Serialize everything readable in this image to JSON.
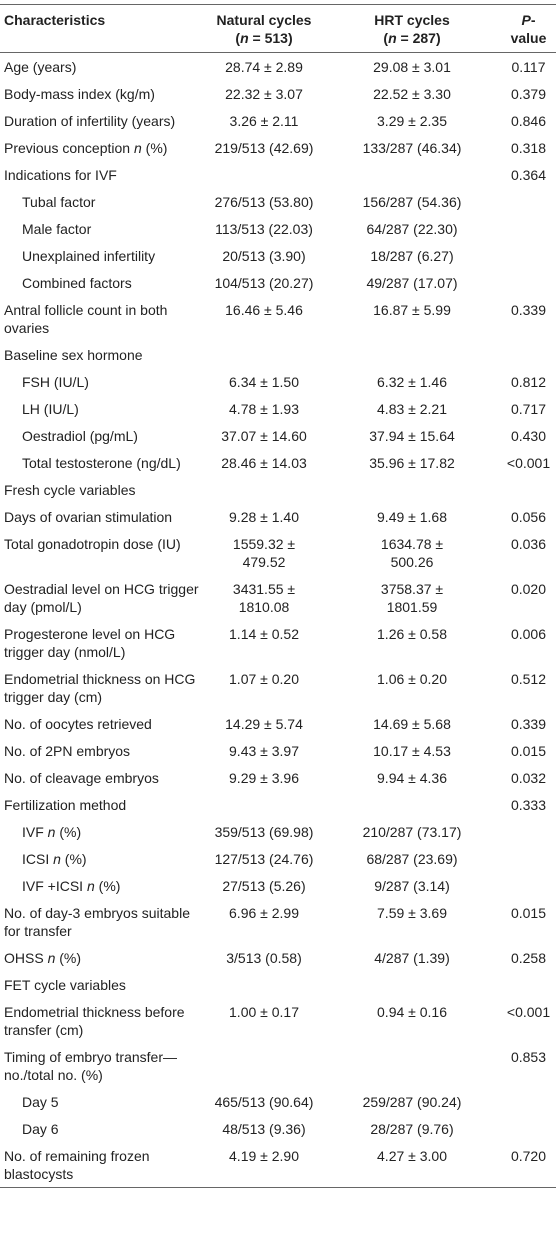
{
  "table": {
    "header": [
      {
        "lines": [
          "Characteristics"
        ]
      },
      {
        "lines": [
          "Natural cycles",
          [
            "(",
            {
              "italic": "n"
            },
            " = 513)"
          ]
        ]
      },
      {
        "lines": [
          "HRT cycles",
          [
            "(",
            {
              "italic": "n"
            },
            " = 287)"
          ]
        ]
      },
      {
        "lines": [
          [
            {
              "italic": "P"
            },
            "-value"
          ]
        ]
      }
    ],
    "rows": [
      {
        "label": "Age (years)",
        "natural": "28.74 ± 2.89",
        "hrt": "29.08 ± 3.01",
        "p": "0.117"
      },
      {
        "label": "Body-mass index (kg/m)",
        "natural": "22.32 ± 3.07",
        "hrt": "22.52 ± 3.30",
        "p": "0.379"
      },
      {
        "label": "Duration of infertility (years)",
        "natural": "3.26 ± 2.11",
        "hrt": "3.29 ± 2.35",
        "p": "0.846"
      },
      {
        "label": [
          "Previous conception ",
          {
            "italic": "n"
          },
          " (%)"
        ],
        "natural": "219/513 (42.69)",
        "hrt": "133/287 (46.34)",
        "p": "0.318"
      },
      {
        "label": "Indications for IVF",
        "p": "0.364"
      },
      {
        "label": "Tubal factor",
        "indent": true,
        "natural": "276/513 (53.80)",
        "hrt": "156/287 (54.36)"
      },
      {
        "label": "Male factor",
        "indent": true,
        "natural": "113/513 (22.03)",
        "hrt": "64/287 (22.30)"
      },
      {
        "label": "Unexplained infertility",
        "indent": true,
        "natural": "20/513 (3.90)",
        "hrt": "18/287 (6.27)"
      },
      {
        "label": "Combined factors",
        "indent": true,
        "natural": "104/513 (20.27)",
        "hrt": "49/287 (17.07)"
      },
      {
        "label": "Antral follicle count in both ovaries",
        "natural": "16.46 ± 5.46",
        "hrt": "16.87 ± 5.99",
        "p": "0.339"
      },
      {
        "label": "Baseline sex hormone"
      },
      {
        "label": "FSH (IU/L)",
        "indent": true,
        "natural": "6.34 ± 1.50",
        "hrt": "6.32 ± 1.46",
        "p": "0.812"
      },
      {
        "label": "LH (IU/L)",
        "indent": true,
        "natural": "4.78 ± 1.93",
        "hrt": "4.83 ± 2.21",
        "p": "0.717"
      },
      {
        "label": "Oestradiol (pg/mL)",
        "indent": true,
        "natural": "37.07 ± 14.60",
        "hrt": "37.94 ± 15.64",
        "p": "0.430"
      },
      {
        "label": "Total testosterone (ng/dL)",
        "indent": true,
        "natural": "28.46 ± 14.03",
        "hrt": "35.96 ± 17.82",
        "p": "<0.001"
      },
      {
        "label": "Fresh cycle variables"
      },
      {
        "label": "Days of ovarian stimulation",
        "natural": "9.28 ± 1.40",
        "hrt": "9.49 ± 1.68",
        "p": "0.056"
      },
      {
        "label": "Total gonadotropin dose (IU)",
        "natural": "1559.32 ± 479.52",
        "hrt": "1634.78 ± 500.26",
        "p": "0.036"
      },
      {
        "label": "Oestradial level on HCG trigger day (pmol/L)",
        "natural": "3431.55 ± 1810.08",
        "hrt": "3758.37 ± 1801.59",
        "p": "0.020"
      },
      {
        "label": "Progesterone level on HCG trigger day (nmol/L)",
        "natural": "1.14 ± 0.52",
        "hrt": "1.26 ± 0.58",
        "p": "0.006"
      },
      {
        "label": "Endometrial thickness on HCG trigger day (cm)",
        "natural": "1.07 ± 0.20",
        "hrt": "1.06 ± 0.20",
        "p": "0.512"
      },
      {
        "label": "No. of oocytes retrieved",
        "natural": "14.29 ± 5.74",
        "hrt": "14.69 ± 5.68",
        "p": "0.339"
      },
      {
        "label": "No. of 2PN embryos",
        "natural": "9.43 ± 3.97",
        "hrt": "10.17 ± 4.53",
        "p": "0.015"
      },
      {
        "label": "No. of cleavage embryos",
        "natural": "9.29 ± 3.96",
        "hrt": "9.94 ± 4.36",
        "p": "0.032"
      },
      {
        "label": "Fertilization method",
        "p": "0.333"
      },
      {
        "label": [
          "IVF ",
          {
            "italic": "n"
          },
          " (%)"
        ],
        "indent": true,
        "natural": "359/513 (69.98)",
        "hrt": "210/287 (73.17)"
      },
      {
        "label": [
          "ICSI ",
          {
            "italic": "n"
          },
          " (%)"
        ],
        "indent": true,
        "natural": "127/513 (24.76)",
        "hrt": "68/287 (23.69)"
      },
      {
        "label": [
          "IVF +ICSI ",
          {
            "italic": "n"
          },
          " (%)"
        ],
        "indent": true,
        "natural": "27/513 (5.26)",
        "hrt": "9/287 (3.14)"
      },
      {
        "label": "No. of day-3 embryos suitable for transfer",
        "natural": "6.96 ± 2.99",
        "hrt": "7.59 ± 3.69",
        "p": "0.015"
      },
      {
        "label": [
          "OHSS ",
          {
            "italic": "n"
          },
          " (%)"
        ],
        "natural": "3/513 (0.58)",
        "hrt": "4/287 (1.39)",
        "p": "0.258"
      },
      {
        "label": "FET cycle variables"
      },
      {
        "label": "Endometrial thickness before transfer (cm)",
        "natural": "1.00 ± 0.17",
        "hrt": "0.94 ± 0.16",
        "p": "<0.001"
      },
      {
        "label": "Timing of embryo transfer—no./total no. (%)",
        "p": "0.853"
      },
      {
        "label": "Day 5",
        "indent": true,
        "natural": "465/513 (90.64)",
        "hrt": "259/287 (90.24)"
      },
      {
        "label": "Day 6",
        "indent": true,
        "natural": "48/513 (9.36)",
        "hrt": "28/287 (9.76)"
      },
      {
        "label": "No. of remaining frozen blastocysts",
        "natural": "4.19 ± 2.90",
        "hrt": "4.27 ± 3.00",
        "p": "0.720"
      }
    ]
  }
}
